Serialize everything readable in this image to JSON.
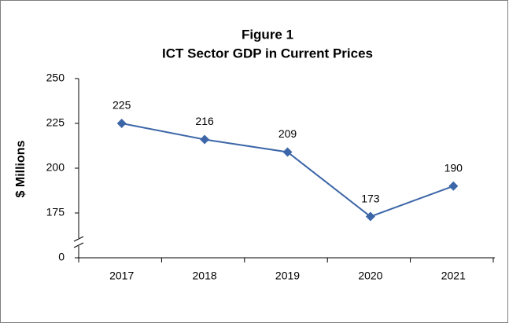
{
  "chart_data": {
    "type": "line",
    "title": "Figure 1",
    "subtitle": "ICT Sector GDP in Current Prices",
    "y_label": "$ Millions",
    "categories": [
      "2017",
      "2018",
      "2019",
      "2020",
      "2021"
    ],
    "series": [
      {
        "name": "ICT Sector GDP",
        "color": "#3d66a8",
        "values": [
          225,
          216,
          209,
          173,
          190
        ]
      }
    ],
    "ylim": [
      0,
      250
    ],
    "y_break": [
      0,
      175
    ],
    "yticks": [
      0,
      175,
      200,
      225,
      250
    ],
    "grid": false,
    "data_labels": true
  }
}
